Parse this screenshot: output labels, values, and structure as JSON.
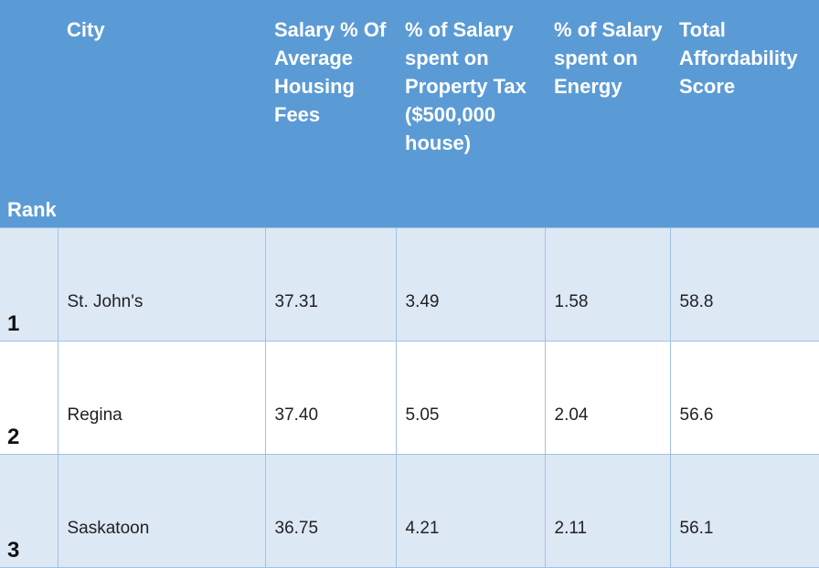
{
  "table": {
    "headers": [
      "Rank",
      "City",
      "Salary % Of Average Housing Fees",
      "% of Salary spent on Property Tax ($500,000 house)",
      "% of Salary spent on Energy",
      "Total Affordability Score"
    ],
    "rows": [
      {
        "rank": "1",
        "city": "St. John's",
        "housing": "37.31",
        "tax": "3.49",
        "energy": "1.58",
        "score": "58.8"
      },
      {
        "rank": "2",
        "city": "Regina",
        "housing": "37.40",
        "tax": "5.05",
        "energy": "2.04",
        "score": "56.6"
      },
      {
        "rank": "3",
        "city": "Saskatoon",
        "housing": "36.75",
        "tax": "4.21",
        "energy": "2.11",
        "score": "56.1"
      }
    ]
  }
}
